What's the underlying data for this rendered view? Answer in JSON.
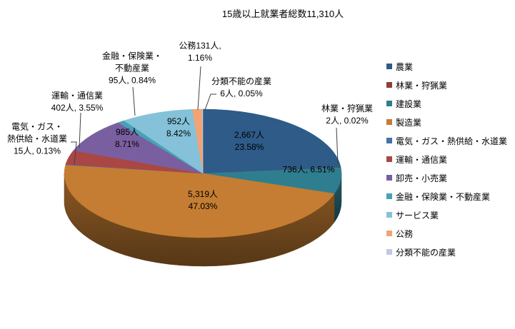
{
  "title": "15歳以上就業者総数11,310人",
  "chart_data": {
    "type": "pie",
    "title": "15歳以上就業者総数11,310人",
    "total": 11310,
    "unit": "人",
    "effect": "3d",
    "start_angle_deg": -90,
    "clockwise": true,
    "legend_position": "right",
    "slices": [
      {
        "key": "agriculture",
        "name": "農業",
        "value": 2667,
        "percent": "23.58%",
        "color": "#2E5B88"
      },
      {
        "key": "forestry",
        "name": "林業・狩猟業",
        "value": 2,
        "percent": "0.02%",
        "color": "#8F3E35"
      },
      {
        "key": "construction",
        "name": "建設業",
        "value": 736,
        "percent": "6.51%",
        "color": "#2F7E8F"
      },
      {
        "key": "manufacturing",
        "name": "製造業",
        "value": 5319,
        "percent": "47.03%",
        "color": "#C47D32"
      },
      {
        "key": "electricity",
        "name": "電気・ガス・熱供給・水道業",
        "value": 15,
        "percent": "0.13%",
        "color": "#4572A7"
      },
      {
        "key": "transport",
        "name": "運輸・通信業",
        "value": 402,
        "percent": "3.55%",
        "color": "#AA4744"
      },
      {
        "key": "wholesale",
        "name": "卸売・小売業",
        "value": 985,
        "percent": "8.71%",
        "color": "#7A5FA0"
      },
      {
        "key": "finance",
        "name": "金融・保険業・不動産業",
        "value": 95,
        "percent": "0.84%",
        "color": "#46A2B6"
      },
      {
        "key": "services",
        "name": "サービス業",
        "value": 952,
        "percent": "8.42%",
        "color": "#85C2D9"
      },
      {
        "key": "public",
        "name": "公務",
        "value": 131,
        "percent": "1.16%",
        "color": "#F0A476"
      },
      {
        "key": "unclassifiable",
        "name": "分類不能の産業",
        "value": 6,
        "percent": "0.05%",
        "color": "#C3C9E2"
      }
    ]
  },
  "callouts": [
    {
      "key": "agriculture",
      "lines": [
        "2,667人",
        "23.58%"
      ]
    },
    {
      "key": "construction",
      "lines": [
        "736人, 6.51%"
      ]
    },
    {
      "key": "manufacturing",
      "lines": [
        "5,319人",
        "47.03%"
      ]
    },
    {
      "key": "wholesale",
      "lines": [
        "985人",
        "8.71%"
      ]
    },
    {
      "key": "services",
      "lines": [
        "952人",
        "8.42%"
      ]
    },
    {
      "key": "public",
      "lines": [
        "公務131人,",
        "1.16%"
      ]
    },
    {
      "key": "unclassifiable",
      "lines": [
        "分類不能の産業",
        "6人, 0.05%"
      ]
    },
    {
      "key": "forestry",
      "lines": [
        "林業・狩猟業",
        "2人, 0.02%"
      ]
    },
    {
      "key": "finance",
      "lines": [
        "金融・保険業・",
        "不動産業",
        "95人, 0.84%"
      ]
    },
    {
      "key": "transport",
      "lines": [
        "運輸・通信業",
        "402人, 3.55%"
      ]
    },
    {
      "key": "electricity",
      "lines": [
        "電気・ガス・",
        "熱供給・水道業",
        "15人, 0.13%"
      ]
    }
  ]
}
